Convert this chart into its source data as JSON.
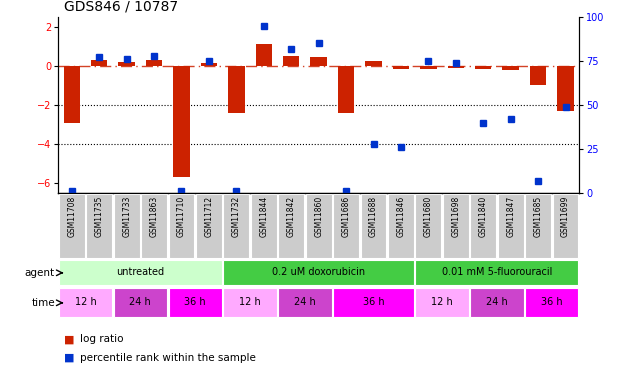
{
  "title": "GDS846 / 10787",
  "samples": [
    "GSM11708",
    "GSM11735",
    "GSM11733",
    "GSM11863",
    "GSM11710",
    "GSM11712",
    "GSM11732",
    "GSM11844",
    "GSM11842",
    "GSM11860",
    "GSM11686",
    "GSM11688",
    "GSM11846",
    "GSM11680",
    "GSM11698",
    "GSM11840",
    "GSM11847",
    "GSM11685",
    "GSM11699"
  ],
  "log_ratio": [
    -2.9,
    0.3,
    0.2,
    0.3,
    -5.7,
    0.15,
    -2.4,
    1.1,
    0.5,
    0.45,
    -2.4,
    0.25,
    -0.15,
    -0.15,
    -0.1,
    -0.15,
    -0.2,
    -1.0,
    -2.3
  ],
  "percentile": [
    1,
    77,
    76,
    78,
    1,
    75,
    1,
    95,
    82,
    85,
    1,
    28,
    26,
    75,
    74,
    40,
    42,
    7,
    49
  ],
  "ylim_left": [
    -6.5,
    2.5
  ],
  "ylim_right": [
    0,
    100
  ],
  "yticks_left": [
    -6,
    -4,
    -2,
    0,
    2
  ],
  "yticks_right": [
    0,
    25,
    50,
    75,
    100
  ],
  "bar_color": "#cc2200",
  "dot_color": "#0033cc",
  "hline_color": "#cc2200",
  "tick_bg": "#cccccc",
  "agent_groups": [
    {
      "label": "untreated",
      "start": 0,
      "end": 6,
      "color": "#ccffcc"
    },
    {
      "label": "0.2 uM doxorubicin",
      "start": 6,
      "end": 13,
      "color": "#44cc44"
    },
    {
      "label": "0.01 mM 5-fluorouracil",
      "start": 13,
      "end": 19,
      "color": "#44cc44"
    }
  ],
  "time_groups": [
    {
      "label": "12 h",
      "start": 0,
      "end": 2,
      "color": "#ffaaff"
    },
    {
      "label": "24 h",
      "start": 2,
      "end": 4,
      "color": "#cc44cc"
    },
    {
      "label": "36 h",
      "start": 4,
      "end": 6,
      "color": "#ff00ff"
    },
    {
      "label": "12 h",
      "start": 6,
      "end": 8,
      "color": "#ffaaff"
    },
    {
      "label": "24 h",
      "start": 8,
      "end": 10,
      "color": "#cc44cc"
    },
    {
      "label": "36 h",
      "start": 10,
      "end": 13,
      "color": "#ff00ff"
    },
    {
      "label": "12 h",
      "start": 13,
      "end": 15,
      "color": "#ffaaff"
    },
    {
      "label": "24 h",
      "start": 15,
      "end": 17,
      "color": "#cc44cc"
    },
    {
      "label": "36 h",
      "start": 17,
      "end": 19,
      "color": "#ff00ff"
    }
  ]
}
